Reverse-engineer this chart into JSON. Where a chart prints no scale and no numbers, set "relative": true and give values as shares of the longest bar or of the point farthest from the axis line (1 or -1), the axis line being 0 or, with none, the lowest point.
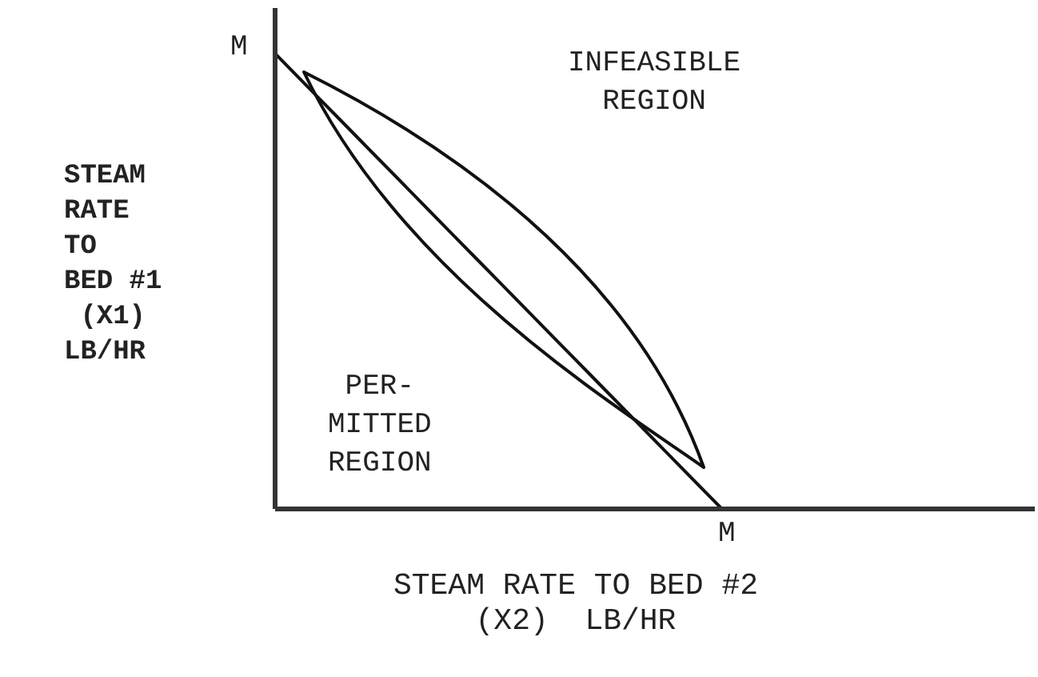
{
  "chart_data": {
    "type": "line",
    "xlabel": "STEAM RATE TO BED #2\n(X2)  LB/HR",
    "ylabel": "STEAM\nRATE\nTO\nBED #1\n (X1)\nLB/HR",
    "relative": true,
    "marker": "none",
    "line_style": "solid",
    "annotations": [
      "INFEASIBLE\nREGION",
      "PER-\nMITTED\nREGION",
      "M",
      "M"
    ],
    "categories": [
      null,
      null,
      null,
      null,
      null,
      null,
      null,
      null,
      null,
      null,
      null,
      null,
      null,
      null,
      null,
      null,
      null,
      null,
      null,
      null,
      null,
      null,
      null,
      null,
      null,
      null,
      null,
      null,
      null,
      null,
      null,
      null,
      null,
      null,
      null
    ],
    "series": [
      {
        "color": "#111111",
        "values": [
          1,
          0.95,
          0.9,
          0.85,
          0.8,
          0.75,
          0.7,
          0.65,
          0.6,
          0.55,
          0.5,
          0.45,
          0.4,
          0.35,
          0.3,
          0.25,
          0.2,
          0.15,
          0.1,
          0.05,
          0,
          null,
          null,
          null,
          null,
          null,
          null,
          null,
          null,
          null,
          null,
          null,
          null,
          null,
          null
        ]
      }
    ]
  }
}
